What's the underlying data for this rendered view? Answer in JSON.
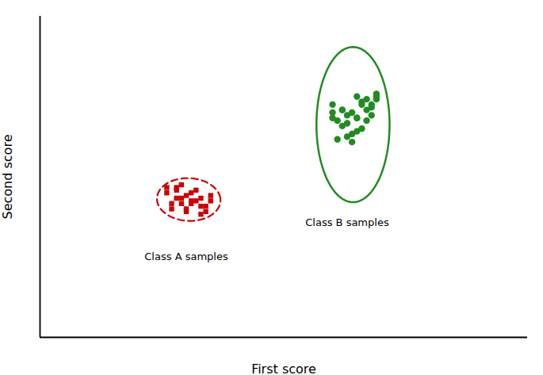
{
  "chart_data": {
    "type": "scatter",
    "xlabel": "First score",
    "ylabel": "Second score",
    "xlim": [
      0.0,
      10.0
    ],
    "ylim": [
      0.0,
      12.0
    ],
    "xticks": [],
    "yticks": [],
    "tick_labels": false,
    "grid": false,
    "background_color": "#ffffff",
    "series": [
      {
        "color": "#cc0000",
        "marker": "square",
        "x": [
          2.8,
          3.2,
          3.0,
          2.7,
          3.5,
          3.3,
          2.9,
          3.1,
          2.6,
          3.4,
          2.8,
          3.0,
          3.3,
          2.9,
          3.1,
          2.7,
          3.2,
          3.0,
          2.8,
          3.4,
          3.1,
          2.9,
          3.3,
          2.6,
          3.5
        ],
        "values": [
          5.2,
          5.5,
          4.8,
          5.0,
          5.3,
          4.6,
          5.7,
          5.1,
          5.4,
          4.9,
          5.6,
          4.7,
          5.2,
          5.0,
          5.4,
          4.8,
          5.1,
          5.3,
          5.5,
          4.7,
          5.0,
          5.2,
          4.9,
          5.6,
          5.1
        ],
        "ellipse": {
          "cx": 3.05,
          "cy": 5.15,
          "width": 1.3,
          "height": 1.6,
          "angle": 5,
          "color": "#cc0000",
          "line_style": "dashed"
        }
      },
      {
        "color": "#228B22",
        "marker": "circle",
        "x": [
          6.2,
          6.7,
          6.5,
          6.0,
          6.9,
          6.4,
          6.6,
          6.1,
          6.8,
          6.3,
          6.5,
          6.2,
          6.7,
          6.0,
          6.6,
          6.4,
          6.8,
          6.1,
          6.3,
          6.9,
          6.5,
          6.2,
          6.7,
          6.4,
          6.6,
          6.0,
          6.8,
          6.3,
          6.5,
          6.9
        ],
        "values": [
          8.5,
          8.9,
          8.2,
          8.7,
          9.1,
          8.4,
          8.8,
          8.1,
          8.6,
          8.3,
          9.0,
          7.9,
          8.5,
          8.2,
          8.7,
          7.6,
          8.3,
          7.4,
          8.0,
          8.9,
          7.7,
          8.5,
          8.1,
          7.3,
          7.8,
          8.4,
          8.7,
          7.5,
          8.2,
          9.0
        ],
        "ellipse": {
          "cx": 6.42,
          "cy": 7.95,
          "width": 1.5,
          "height": 5.8,
          "angle": 0,
          "color": "#228B22",
          "line_style": "solid"
        }
      }
    ],
    "annotations": [
      {
        "text": "Class A samples",
        "x": 3.0,
        "y": 3.0
      },
      {
        "text": "Class B samples",
        "x": 6.3,
        "y": 4.3
      }
    ]
  }
}
